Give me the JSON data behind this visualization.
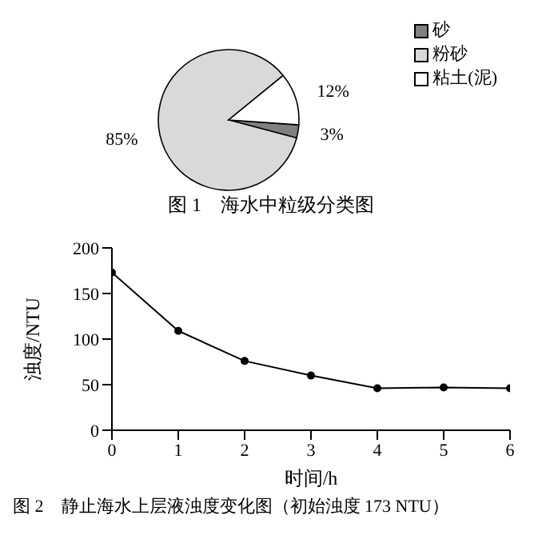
{
  "chart_data": [
    {
      "type": "pie",
      "title": "图 1　海水中粒级分类图",
      "categories": [
        "砂",
        "粉砂",
        "粘土(泥)"
      ],
      "values": [
        3,
        85,
        12
      ],
      "colors": [
        "#808080",
        "#d9d9d9",
        "#ffffff"
      ],
      "value_labels": [
        "3%",
        "85%",
        "12%"
      ],
      "legend": "top right"
    },
    {
      "type": "line",
      "title": "图 2　静止海水上层液浊度变化图（初始浊度 173 NTU）",
      "xlabel": "时间/h",
      "ylabel": "浊度/NTU",
      "x": [
        0,
        1,
        2,
        3,
        4,
        5,
        6
      ],
      "series": [
        {
          "color": "#000000",
          "values": [
            173,
            109,
            76,
            60,
            46,
            47,
            46
          ]
        }
      ],
      "xlim": [
        0,
        6
      ],
      "xticks": [
        0,
        1,
        2,
        3,
        4,
        5,
        6
      ],
      "ylim": [
        0,
        200
      ],
      "yticks": [
        0,
        50,
        100,
        150,
        200
      ],
      "marker": "circle",
      "line_style": "solid",
      "grid": false,
      "legend": false
    }
  ]
}
